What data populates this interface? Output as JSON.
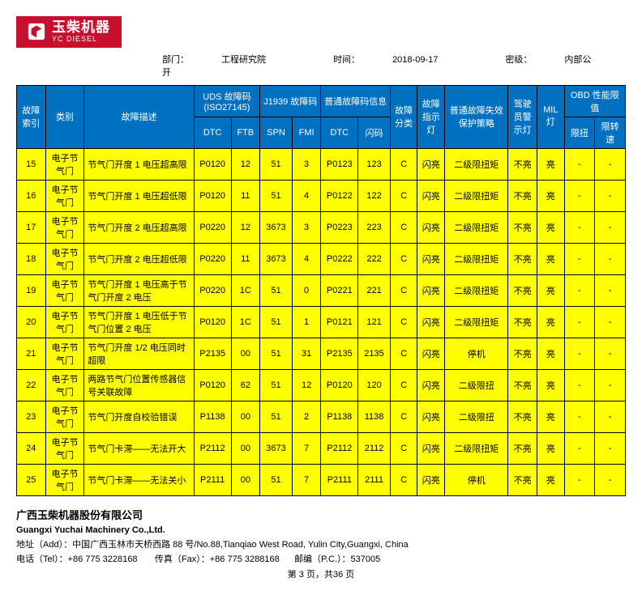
{
  "logo": {
    "cn": "玉柴机器",
    "en": "YC DIESEL"
  },
  "meta": {
    "dept_label": "部门：",
    "dept": "工程研究院",
    "time_label": "时间：",
    "time": "2018-09-17",
    "sec_label": "密级：",
    "sec": "内部公开"
  },
  "head": {
    "col_index": "故障索引",
    "col_cat": "类别",
    "col_desc": "故障描述",
    "grp_uds": "UDS 故障码 (ISO27145)",
    "grp_j1939": "J1939 故障码",
    "grp_info": "普通故障码信息",
    "col_class": "故障分类",
    "col_lamp": "故障指示灯",
    "col_strategy": "普通故障失效保护策略",
    "col_warn": "驾驶员警示灯",
    "col_mil": "MIL灯",
    "grp_obd": "OBD 性能限值",
    "sub_dtc": "DTC",
    "sub_ftb": "FTB",
    "sub_spn": "SPN",
    "sub_fmi": "FMI",
    "sub_dtc2": "DTC",
    "sub_flash": "闪码",
    "sub_torque": "限扭",
    "sub_speed": "限转速"
  },
  "rows": [
    {
      "idx": "15",
      "cat": "电子节气门",
      "desc": "节气门开度 1 电压超高限",
      "dtc": "P0120",
      "ftb": "12",
      "spn": "51",
      "fmi": "3",
      "dtc2": "P0123",
      "flash": "123",
      "cls": "C",
      "lamp": "闪亮",
      "str": "二级限扭矩",
      "warn": "不亮",
      "mil": "亮",
      "t": "-",
      "s": "-"
    },
    {
      "idx": "16",
      "cat": "电子节气门",
      "desc": "节气门开度 1 电压超低限",
      "dtc": "P0120",
      "ftb": "11",
      "spn": "51",
      "fmi": "4",
      "dtc2": "P0122",
      "flash": "122",
      "cls": "C",
      "lamp": "闪亮",
      "str": "二级限扭矩",
      "warn": "不亮",
      "mil": "亮",
      "t": "-",
      "s": "-"
    },
    {
      "idx": "17",
      "cat": "电子节气门",
      "desc": "节气门开度 2 电压超高限",
      "dtc": "P0220",
      "ftb": "12",
      "spn": "3673",
      "fmi": "3",
      "dtc2": "P0223",
      "flash": "223",
      "cls": "C",
      "lamp": "闪亮",
      "str": "二级限扭矩",
      "warn": "不亮",
      "mil": "亮",
      "t": "-",
      "s": "-"
    },
    {
      "idx": "18",
      "cat": "电子节气门",
      "desc": "节气门开度 2 电压超低限",
      "dtc": "P0220",
      "ftb": "11",
      "spn": "3673",
      "fmi": "4",
      "dtc2": "P0222",
      "flash": "222",
      "cls": "C",
      "lamp": "闪亮",
      "str": "二级限扭矩",
      "warn": "不亮",
      "mil": "亮",
      "t": "-",
      "s": "-"
    },
    {
      "idx": "19",
      "cat": "电子节气门",
      "desc": "节气门开度 1 电压高于节气门开度 2 电压",
      "dtc": "P0220",
      "ftb": "1C",
      "spn": "51",
      "fmi": "0",
      "dtc2": "P0221",
      "flash": "221",
      "cls": "C",
      "lamp": "闪亮",
      "str": "二级限扭矩",
      "warn": "不亮",
      "mil": "亮",
      "t": "-",
      "s": "-"
    },
    {
      "idx": "20",
      "cat": "电子节气门",
      "desc": "节气门开度 1 电压低于节气门位置 2 电压",
      "dtc": "P0120",
      "ftb": "1C",
      "spn": "51",
      "fmi": "1",
      "dtc2": "P0121",
      "flash": "121",
      "cls": "C",
      "lamp": "闪亮",
      "str": "二级限扭矩",
      "warn": "不亮",
      "mil": "亮",
      "t": "-",
      "s": "-"
    },
    {
      "idx": "21",
      "cat": "电子节气门",
      "desc": "节气门开度 1/2 电压同时超限",
      "dtc": "P2135",
      "ftb": "00",
      "spn": "51",
      "fmi": "31",
      "dtc2": "P2135",
      "flash": "2135",
      "cls": "C",
      "lamp": "闪亮",
      "str": "停机",
      "warn": "不亮",
      "mil": "亮",
      "t": "-",
      "s": "-"
    },
    {
      "idx": "22",
      "cat": "电子节气门",
      "desc": "两路节气门位置传感器信号关联故障",
      "dtc": "P0120",
      "ftb": "62",
      "spn": "51",
      "fmi": "12",
      "dtc2": "P0120",
      "flash": "120",
      "cls": "C",
      "lamp": "闪亮",
      "str": "二级限扭",
      "warn": "不亮",
      "mil": "亮",
      "t": "-",
      "s": "-"
    },
    {
      "idx": "23",
      "cat": "电子节气门",
      "desc": "节气门开度自校验错误",
      "dtc": "P1138",
      "ftb": "00",
      "spn": "51",
      "fmi": "2",
      "dtc2": "P1138",
      "flash": "1138",
      "cls": "C",
      "lamp": "闪亮",
      "str": "二级限扭",
      "warn": "不亮",
      "mil": "亮",
      "t": "-",
      "s": "-"
    },
    {
      "idx": "24",
      "cat": "电子节气门",
      "desc": "节气门卡滞——无法开大",
      "dtc": "P2112",
      "ftb": "00",
      "spn": "3673",
      "fmi": "7",
      "dtc2": "P2112",
      "flash": "2112",
      "cls": "C",
      "lamp": "闪亮",
      "str": "二级限扭矩",
      "warn": "不亮",
      "mil": "亮",
      "t": "-",
      "s": "-"
    },
    {
      "idx": "25",
      "cat": "电子节气门",
      "desc": "节气门卡滞——无法关小",
      "dtc": "P2111",
      "ftb": "00",
      "spn": "51",
      "fmi": "7",
      "dtc2": "P2111",
      "flash": "2111",
      "cls": "C",
      "lamp": "闪亮",
      "str": "停机",
      "warn": "不亮",
      "mil": "亮",
      "t": "-",
      "s": "-"
    }
  ],
  "footer": {
    "co_cn": "广西玉柴机器股份有限公司",
    "co_en": "Guangxi Yuchai Machinery Co.,Ltd.",
    "addr": "地址（Add）：中国广西玉林市天桥西路 88 号/No.88,Tianqiao West Road, Yulin City,Guangxi, China",
    "tel": "电话（Tel）：+86 775 3228168",
    "fax": "传真（Fax）：+86 775 3288168",
    "pc": "邮编（P.C.）：537005",
    "pager": "第 3 页，共36 页"
  },
  "style": {
    "header_bg": "#0070c0",
    "cell_bg": "#ffff00",
    "logo_bg": "#c8102e"
  }
}
